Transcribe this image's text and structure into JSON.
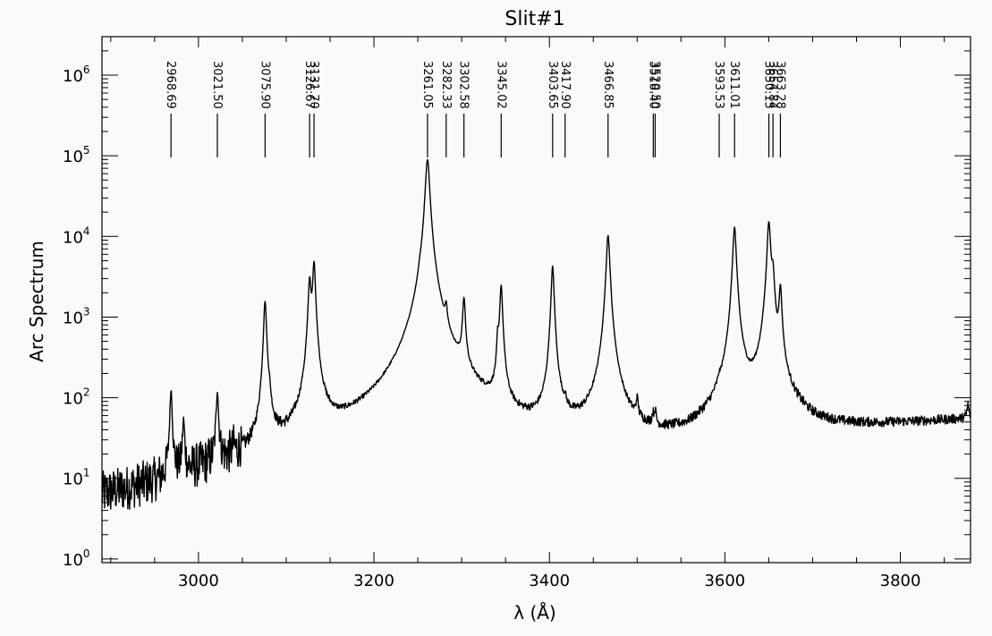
{
  "chart_data": {
    "type": "line",
    "title": "Slit#1",
    "xlabel": "λ (Å)",
    "ylabel": "Arc Spectrum",
    "xlim": [
      2890,
      3880
    ],
    "ylim": [
      0.9,
      3000000
    ],
    "yscale": "log",
    "grid": false,
    "xticks": [
      {
        "value": 3000,
        "label": "3000"
      },
      {
        "value": 3200,
        "label": "3200"
      },
      {
        "value": 3400,
        "label": "3400"
      },
      {
        "value": 3600,
        "label": "3600"
      },
      {
        "value": 3800,
        "label": "3800"
      }
    ],
    "xminor_step": 50,
    "yticks": [
      {
        "value": 1,
        "base": "10",
        "exp": "0"
      },
      {
        "value": 10,
        "base": "10",
        "exp": "1"
      },
      {
        "value": 100,
        "base": "10",
        "exp": "2"
      },
      {
        "value": 1000,
        "base": "10",
        "exp": "3"
      },
      {
        "value": 10000,
        "base": "10",
        "exp": "4"
      },
      {
        "value": 100000,
        "base": "10",
        "exp": "5"
      },
      {
        "value": 1000000,
        "base": "10",
        "exp": "6"
      }
    ],
    "identified_lines": [
      {
        "wavelength": 2968.69,
        "label": "2968.69"
      },
      {
        "wavelength": 3021.5,
        "label": "3021.50"
      },
      {
        "wavelength": 3075.9,
        "label": "3075.90"
      },
      {
        "wavelength": 3126.67,
        "label": "3126.67"
      },
      {
        "wavelength": 3131.7,
        "label": "3131.70"
      },
      {
        "wavelength": 3261.05,
        "label": "3261.05"
      },
      {
        "wavelength": 3282.33,
        "label": "3282.33"
      },
      {
        "wavelength": 3302.58,
        "label": "3302.58"
      },
      {
        "wavelength": 3345.02,
        "label": "3345.02"
      },
      {
        "wavelength": 3403.65,
        "label": "3403.65"
      },
      {
        "wavelength": 3417.9,
        "label": "3417.90"
      },
      {
        "wavelength": 3466.85,
        "label": "3466.85"
      },
      {
        "wavelength": 3518.4,
        "label": "3518.40"
      },
      {
        "wavelength": 3520.5,
        "label": "3520.50"
      },
      {
        "wavelength": 3593.53,
        "label": "3593.53"
      },
      {
        "wavelength": 3611.01,
        "label": "3611.01"
      },
      {
        "wavelength": 3650.15,
        "label": "3650.15"
      },
      {
        "wavelength": 3654.84,
        "label": "3654.84"
      },
      {
        "wavelength": 3663.28,
        "label": "3663.28"
      }
    ],
    "continuum": [
      [
        2890,
        2.5
      ],
      [
        2950,
        3.5
      ],
      [
        3000,
        5.5
      ],
      [
        3050,
        7.5
      ],
      [
        3100,
        10
      ],
      [
        3150,
        14
      ],
      [
        3200,
        18
      ],
      [
        3240,
        28
      ],
      [
        3300,
        35
      ],
      [
        3360,
        20
      ],
      [
        3450,
        20
      ],
      [
        3500,
        20
      ],
      [
        3560,
        22
      ],
      [
        3620,
        40
      ],
      [
        3700,
        35
      ],
      [
        3750,
        40
      ],
      [
        3800,
        45
      ],
      [
        3880,
        53
      ]
    ],
    "peaks": [
      {
        "x": 2968.7,
        "y": 120,
        "w": 1.2
      },
      {
        "x": 2983.0,
        "y": 45,
        "w": 1.2
      },
      {
        "x": 3021.5,
        "y": 115,
        "w": 1.2
      },
      {
        "x": 3040.0,
        "y": 15,
        "w": 1.0
      },
      {
        "x": 3075.9,
        "y": 1550,
        "w": 1.5
      },
      {
        "x": 3081.0,
        "y": 50,
        "w": 1.2
      },
      {
        "x": 3126.7,
        "y": 2800,
        "w": 1.5
      },
      {
        "x": 3131.7,
        "y": 4700,
        "w": 1.5
      },
      {
        "x": 3252.0,
        "y": 450,
        "w": 1.2
      },
      {
        "x": 3261.05,
        "y": 90000,
        "w": 2.2
      },
      {
        "x": 3282.3,
        "y": 650,
        "w": 1.2
      },
      {
        "x": 3302.6,
        "y": 1500,
        "w": 1.5
      },
      {
        "x": 3341.0,
        "y": 400,
        "w": 1.0
      },
      {
        "x": 3345.0,
        "y": 2400,
        "w": 1.5
      },
      {
        "x": 3403.65,
        "y": 4300,
        "w": 1.5
      },
      {
        "x": 3417.9,
        "y": 38,
        "w": 1.2
      },
      {
        "x": 3466.85,
        "y": 10300,
        "w": 1.8
      },
      {
        "x": 3500.0,
        "y": 60,
        "w": 1.2
      },
      {
        "x": 3518.0,
        "y": 35,
        "w": 1.2
      },
      {
        "x": 3520.5,
        "y": 42,
        "w": 1.2
      },
      {
        "x": 3593.5,
        "y": 55,
        "w": 1.2
      },
      {
        "x": 3611.0,
        "y": 13000,
        "w": 1.8
      },
      {
        "x": 3650.15,
        "y": 15000,
        "w": 1.8
      },
      {
        "x": 3654.8,
        "y": 3000,
        "w": 1.5
      },
      {
        "x": 3663.3,
        "y": 2200,
        "w": 1.5
      },
      {
        "x": 3877.0,
        "y": 78,
        "w": 1.2
      }
    ]
  }
}
